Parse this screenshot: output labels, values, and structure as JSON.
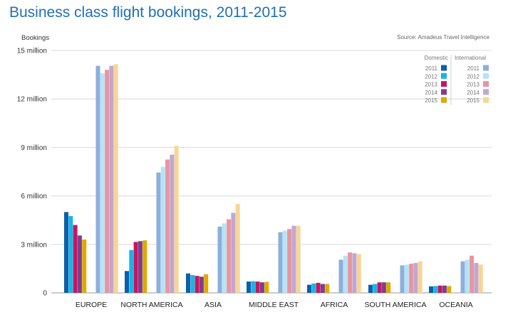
{
  "chart_data": {
    "type": "bar",
    "title": "Business class flight bookings, 2011-2015",
    "ylabel": "Bookings",
    "source": "Source: Amadeus Travel Intelligence",
    "ylim": [
      0,
      15000000
    ],
    "yticks": [
      0,
      3000000,
      6000000,
      9000000,
      12000000,
      15000000
    ],
    "ytick_labels": [
      "0",
      "3 million",
      "6 million",
      "9 million",
      "12 million",
      "15 million"
    ],
    "categories": [
      "EUROPE",
      "NORTH AMERICA",
      "ASIA",
      "MIDDLE EAST",
      "AFRICA",
      "SOUTH AMERICA",
      "OCEANIA"
    ],
    "legend": {
      "position": "top-right",
      "groups": [
        {
          "name": "Domestic",
          "years": [
            "2011",
            "2012",
            "2013",
            "2014",
            "2015"
          ]
        },
        {
          "name": "International",
          "years": [
            "2011",
            "2012",
            "2013",
            "2014",
            "2015"
          ]
        }
      ]
    },
    "series": [
      {
        "name": "Domestic 2011",
        "color": "#0c5fa8",
        "values": [
          5000000,
          1350000,
          1200000,
          700000,
          500000,
          500000,
          400000
        ]
      },
      {
        "name": "Domestic 2012",
        "color": "#17b4e6",
        "values": [
          4750000,
          2650000,
          1100000,
          720000,
          580000,
          550000,
          420000
        ]
      },
      {
        "name": "Domestic 2013",
        "color": "#c8145e",
        "values": [
          4200000,
          3150000,
          1050000,
          700000,
          620000,
          650000,
          450000
        ]
      },
      {
        "name": "Domestic 2014",
        "color": "#7b3f8f",
        "values": [
          3550000,
          3200000,
          1000000,
          650000,
          550000,
          650000,
          450000
        ]
      },
      {
        "name": "Domestic 2015",
        "color": "#e0a800",
        "values": [
          3300000,
          3250000,
          1150000,
          680000,
          550000,
          650000,
          420000
        ]
      },
      {
        "name": "International 2011",
        "color": "#8eaedb",
        "values": [
          14050000,
          7450000,
          4100000,
          3750000,
          2050000,
          1700000,
          1950000
        ]
      },
      {
        "name": "International 2012",
        "color": "#b5e3f7",
        "values": [
          13600000,
          7800000,
          4300000,
          3850000,
          2300000,
          1750000,
          2050000
        ]
      },
      {
        "name": "International 2013",
        "color": "#e8959f",
        "values": [
          13800000,
          8250000,
          4550000,
          3950000,
          2500000,
          1800000,
          2300000
        ]
      },
      {
        "name": "International 2014",
        "color": "#c2a6d1",
        "values": [
          14050000,
          8550000,
          4950000,
          4150000,
          2450000,
          1850000,
          1850000
        ]
      },
      {
        "name": "International 2015",
        "color": "#f6d697",
        "values": [
          14150000,
          9100000,
          5500000,
          4150000,
          2400000,
          1950000,
          1750000
        ]
      }
    ]
  }
}
